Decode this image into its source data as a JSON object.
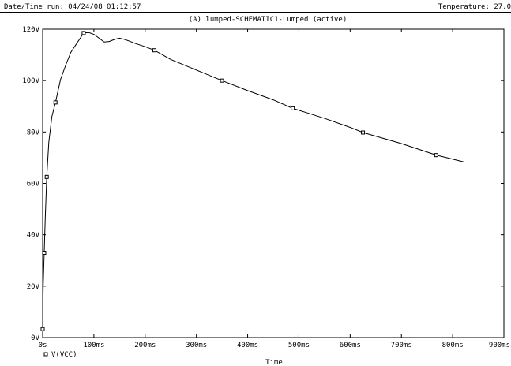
{
  "header": {
    "run_label": "Date/Time run: 04/24/08 01:12:57",
    "temperature_label": "Temperature: 27.0"
  },
  "colors": {
    "trace": "#000000",
    "axis": "#000000",
    "background": "#ffffff"
  },
  "chart_data": {
    "type": "line",
    "title": "(A) lumped-SCHEMATIC1-Lumped (active)",
    "xlabel": "Time",
    "ylabel": "",
    "xlim": [
      0,
      900
    ],
    "ylim": [
      0,
      120
    ],
    "grid": false,
    "x_ticks": [
      0,
      100,
      200,
      300,
      400,
      500,
      600,
      700,
      800,
      900
    ],
    "x_tick_labels": [
      "0s",
      "100ms",
      "200ms",
      "300ms",
      "400ms",
      "500ms",
      "600ms",
      "700ms",
      "800ms",
      "900ms"
    ],
    "y_ticks": [
      0,
      20,
      40,
      60,
      80,
      100,
      120
    ],
    "y_tick_labels": [
      "0V",
      "20V",
      "40V",
      "60V",
      "80V",
      "100V",
      "120V"
    ],
    "legend": {
      "placement": "bottom-left",
      "marker": "square"
    },
    "series": [
      {
        "name": "V(VCC)",
        "x_unit": "ms",
        "y_unit": "V",
        "x": [
          0,
          1,
          3,
          5,
          8,
          12,
          18,
          25,
          35,
          45,
          55,
          65,
          75,
          80,
          90,
          100,
          110,
          120,
          130,
          140,
          150,
          160,
          170,
          180,
          200,
          218,
          250,
          300,
          350,
          400,
          450,
          488,
          550,
          600,
          625,
          700,
          768,
          823
        ],
        "y": [
          3.3,
          20,
          33,
          46,
          62.5,
          76,
          86,
          91.5,
          100.5,
          106,
          111,
          114,
          117,
          118.5,
          118.7,
          118,
          116.5,
          115,
          115.2,
          116,
          116.5,
          116,
          115.3,
          114.5,
          113.2,
          111.8,
          108.2,
          104.1,
          100,
          96.1,
          92.5,
          89.2,
          85.3,
          81.8,
          79.8,
          75.5,
          71,
          68.3
        ],
        "markers": [
          {
            "x": 0,
            "y": 3.3
          },
          {
            "x": 3,
            "y": 33
          },
          {
            "x": 8,
            "y": 62.5
          },
          {
            "x": 25,
            "y": 91.5
          },
          {
            "x": 80,
            "y": 118.5
          },
          {
            "x": 218,
            "y": 111.8
          },
          {
            "x": 350,
            "y": 100
          },
          {
            "x": 488,
            "y": 89.2
          },
          {
            "x": 625,
            "y": 79.8
          },
          {
            "x": 768,
            "y": 71
          }
        ]
      }
    ]
  }
}
